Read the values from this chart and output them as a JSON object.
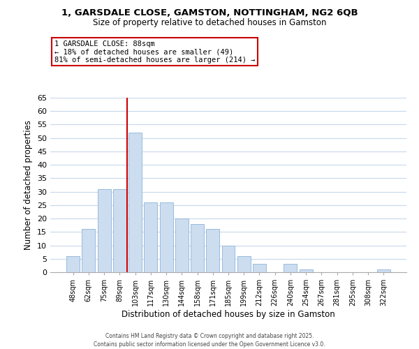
{
  "title_line1": "1, GARSDALE CLOSE, GAMSTON, NOTTINGHAM, NG2 6QB",
  "title_line2": "Size of property relative to detached houses in Gamston",
  "bar_labels": [
    "48sqm",
    "62sqm",
    "75sqm",
    "89sqm",
    "103sqm",
    "117sqm",
    "130sqm",
    "144sqm",
    "158sqm",
    "171sqm",
    "185sqm",
    "199sqm",
    "212sqm",
    "226sqm",
    "240sqm",
    "254sqm",
    "267sqm",
    "281sqm",
    "295sqm",
    "308sqm",
    "322sqm"
  ],
  "bar_values": [
    6,
    16,
    31,
    31,
    52,
    26,
    26,
    20,
    18,
    16,
    10,
    6,
    3,
    0,
    3,
    1,
    0,
    0,
    0,
    0,
    1
  ],
  "bar_color": "#ccddf0",
  "bar_edgecolor": "#99bbdd",
  "marker_line_color": "#cc0000",
  "xlabel": "Distribution of detached houses by size in Gamston",
  "ylabel": "Number of detached properties",
  "ylim": [
    0,
    65
  ],
  "yticks": [
    0,
    5,
    10,
    15,
    20,
    25,
    30,
    35,
    40,
    45,
    50,
    55,
    60,
    65
  ],
  "annotation_line1": "1 GARSDALE CLOSE: 88sqm",
  "annotation_line2": "← 18% of detached houses are smaller (49)",
  "annotation_line3": "81% of semi-detached houses are larger (214) →",
  "footer_line1": "Contains HM Land Registry data © Crown copyright and database right 2025.",
  "footer_line2": "Contains public sector information licensed under the Open Government Licence v3.0.",
  "background_color": "#ffffff",
  "grid_color": "#c8d8ec"
}
